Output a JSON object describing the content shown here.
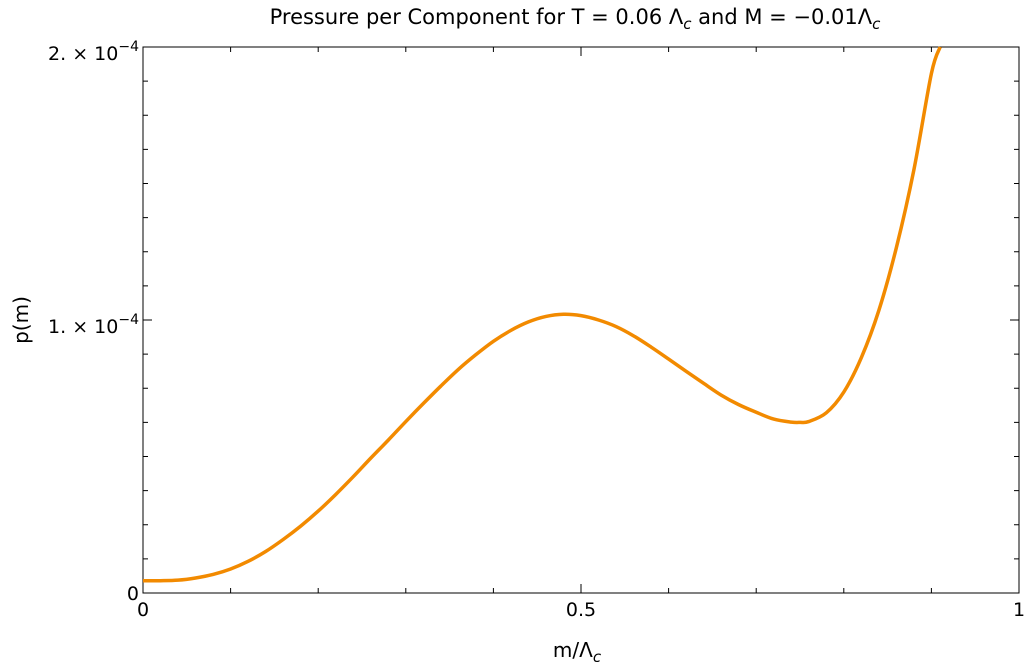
{
  "chart_data": {
    "type": "line",
    "title": "Pressure per Component for T = 0.06 Λ",
    "title_sub_1": "c",
    "title_mid": " and M = −0.01Λ",
    "title_sub_2": "c",
    "xlabel": "m/Λ",
    "xlabel_sub": "c",
    "ylabel": "p(m)",
    "xlim": [
      0,
      1
    ],
    "ylim": [
      0,
      0.0002
    ],
    "x_ticks": [
      0,
      0.5,
      1
    ],
    "x_tick_labels": [
      "0",
      "0.5",
      "1"
    ],
    "x_minor_ticks": [
      0.1,
      0.2,
      0.3,
      0.4,
      0.6,
      0.7,
      0.8,
      0.9
    ],
    "y_ticks": [
      0,
      0.0001,
      0.0002
    ],
    "y_tick_label_zero": "0",
    "y_tick_mantissa": "1. × 10",
    "y_tick_mantissa_2": "2. × 10",
    "y_tick_exponent": "−4",
    "y_minor_ticks": [
      5e-05,
      0.00015,
      1.25e-05,
      2.5e-05,
      3.75e-05,
      6.25e-05,
      7.5e-05,
      8.75e-05,
      0.0001125,
      0.000125,
      0.0001375,
      0.0001625,
      0.000175,
      0.0001875
    ],
    "grid": false,
    "line_color": "#F28A00",
    "series": [
      {
        "x": [
          0,
          0.02,
          0.04,
          0.06,
          0.08,
          0.1,
          0.12,
          0.14,
          0.16,
          0.18,
          0.2,
          0.22,
          0.24,
          0.26,
          0.28,
          0.3,
          0.32,
          0.34,
          0.36,
          0.38,
          0.4,
          0.42,
          0.44,
          0.46,
          0.48,
          0.5,
          0.52,
          0.54,
          0.56,
          0.58,
          0.6,
          0.62,
          0.64,
          0.66,
          0.68,
          0.7,
          0.72,
          0.74,
          0.75,
          0.76,
          0.78,
          0.8,
          0.82,
          0.84,
          0.86,
          0.88,
          0.9,
          0.91
        ],
        "values": [
          4.5e-06,
          4.5e-06,
          4.7e-06,
          5.5e-06,
          6.8e-06,
          8.8e-06,
          1.16e-05,
          1.52e-05,
          1.96e-05,
          2.45e-05,
          3e-05,
          3.61e-05,
          4.26e-05,
          4.94e-05,
          5.6e-05,
          6.28e-05,
          6.94e-05,
          7.58e-05,
          8.19e-05,
          8.73e-05,
          9.22e-05,
          9.62e-05,
          9.93e-05,
          0.0001013,
          0.0001021,
          0.0001016,
          0.0001,
          9.76e-05,
          9.42e-05,
          9.01e-05,
          8.57e-05,
          8.12e-05,
          7.68e-05,
          7.25e-05,
          6.9e-05,
          6.62e-05,
          6.37e-05,
          6.26e-05,
          6.25e-05,
          6.28e-05,
          6.6e-05,
          7.36e-05,
          8.62e-05,
          0.0001035,
          0.0001265,
          0.000155,
          0.0001903,
          0.0002
        ]
      }
    ]
  }
}
